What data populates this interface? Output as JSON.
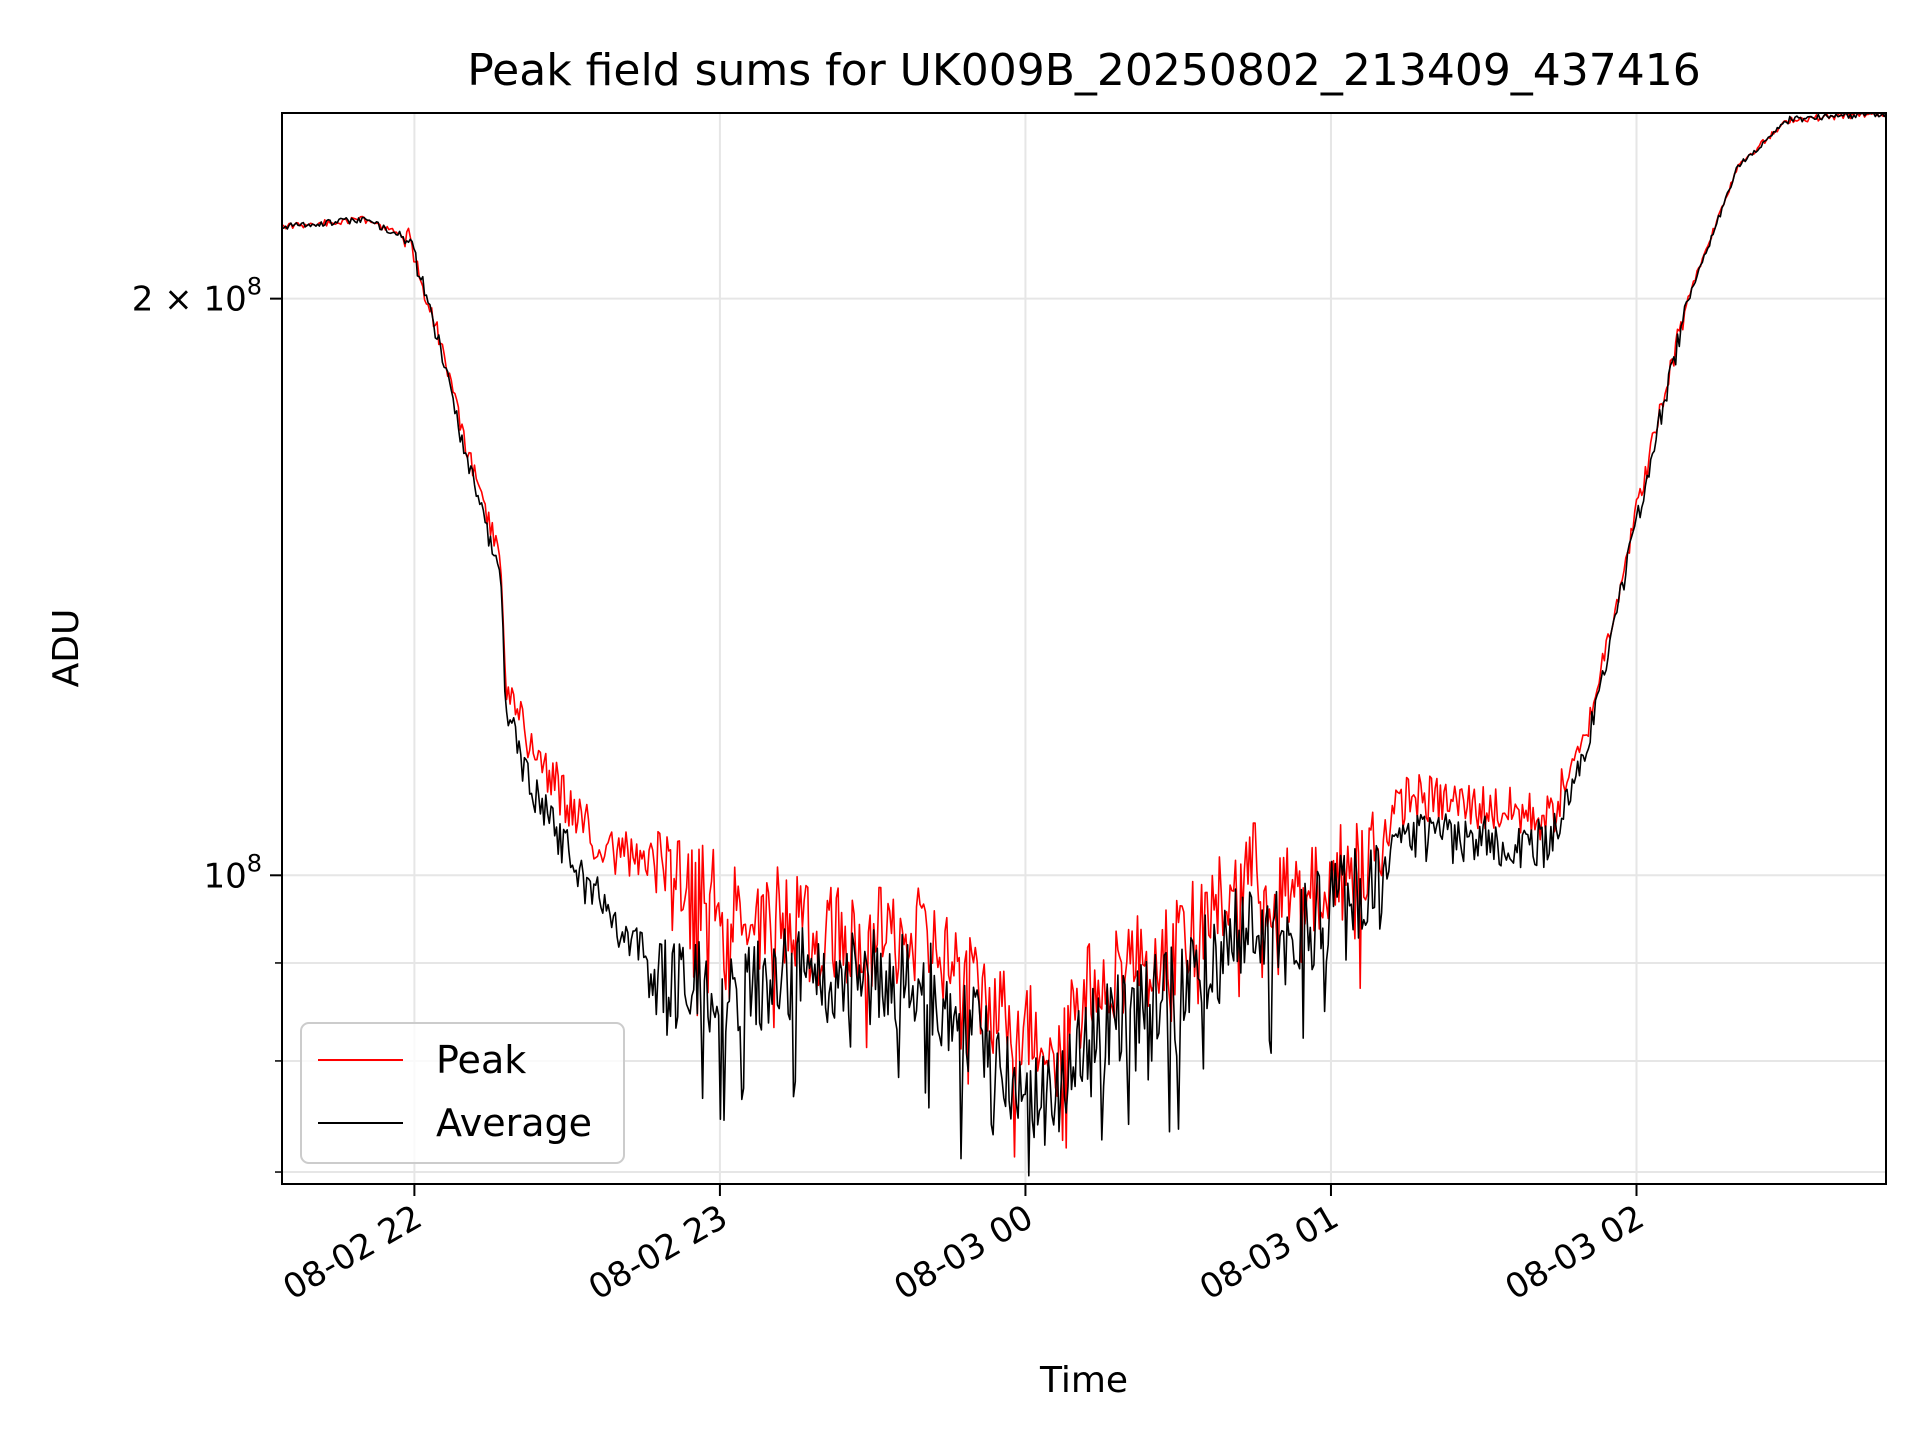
{
  "chart_data": {
    "type": "line",
    "title": "Peak field sums for UK009B_20250802_213409_437416",
    "xlabel": "Time",
    "ylabel": "ADU",
    "xlim": [
      "2025-08-02 21:34",
      "2025-08-03 02:49"
    ],
    "ylim": [
      69000000,
      250000000
    ],
    "yscale": "log",
    "x_ticks": [
      "08-02 22",
      "08-02 23",
      "08-03 00",
      "08-03 01",
      "08-03 02"
    ],
    "x_tick_times": [
      "2025-08-02 22:00",
      "2025-08-02 23:00",
      "2025-08-03 00:00",
      "2025-08-03 01:00",
      "2025-08-03 02:00"
    ],
    "y_ticks": [
      "2 × 10^8",
      "10^8"
    ],
    "y_tick_values": [
      200000000,
      100000000
    ],
    "y_minor_ticks": [
      70000000,
      80000000,
      90000000
    ],
    "grid": true,
    "legend_position": "lower-left",
    "colors": {
      "peak": "#ff0000",
      "average": "#000000",
      "grid": "#e6e6e6"
    },
    "x": [
      "2025-08-02 21:34",
      "2025-08-02 21:50",
      "2025-08-02 21:59",
      "2025-08-02 22:05",
      "2025-08-02 22:10",
      "2025-08-02 22:15",
      "2025-08-02 22:17",
      "2025-08-02 22:18",
      "2025-08-02 22:25",
      "2025-08-02 22:35",
      "2025-08-02 22:50",
      "2025-08-02 23:05",
      "2025-08-02 23:20",
      "2025-08-02 23:40",
      "2025-08-02 23:55",
      "2025-08-03 00:05",
      "2025-08-03 00:15",
      "2025-08-03 00:30",
      "2025-08-03 00:45",
      "2025-08-03 00:50",
      "2025-08-03 00:55",
      "2025-08-03 01:10",
      "2025-08-03 01:15",
      "2025-08-03 01:35",
      "2025-08-03 01:43",
      "2025-08-03 01:50",
      "2025-08-03 02:00",
      "2025-08-03 02:10",
      "2025-08-03 02:20",
      "2025-08-03 02:30",
      "2025-08-03 02:49"
    ],
    "series": [
      {
        "name": "Peak",
        "values": [
          218000000,
          220000000,
          215000000,
          190000000,
          168000000,
          152000000,
          146000000,
          125000000,
          114000000,
          105000000,
          99000000,
          97000000,
          93000000,
          93000000,
          85000000,
          82000000,
          89000000,
          92000000,
          101000000,
          98000000,
          97000000,
          105000000,
          110000000,
          108000000,
          107000000,
          118000000,
          155000000,
          200000000,
          235000000,
          248000000,
          250000000
        ]
      },
      {
        "name": "Average",
        "values": [
          218000000,
          220000000,
          215000000,
          189000000,
          166000000,
          149000000,
          143000000,
          121000000,
          109000000,
          98000000,
          88000000,
          88000000,
          89000000,
          88000000,
          80000000,
          76000000,
          84000000,
          87000000,
          96000000,
          92000000,
          94000000,
          100000000,
          105000000,
          104000000,
          104000000,
          116000000,
          153000000,
          199000000,
          235000000,
          248000000,
          250000000
        ]
      }
    ]
  }
}
